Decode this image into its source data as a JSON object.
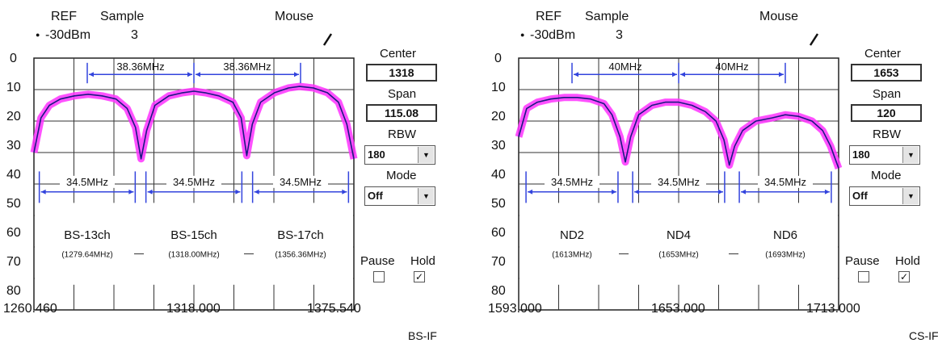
{
  "panels": [
    {
      "header": {
        "ref_label": "REF",
        "ref_value": "-30dBm",
        "sample_label": "Sample",
        "sample_value": "3",
        "mouse_label": "Mouse"
      },
      "footer_label": "BS-IF",
      "controls": {
        "center_label": "Center",
        "center_value": "1318",
        "span_label": "Span",
        "span_value": "115.08",
        "rbw_label": "RBW",
        "rbw_value": "180",
        "mode_label": "Mode",
        "mode_value": "Off",
        "pause_label": "Pause",
        "hold_label": "Hold",
        "pause_checked": false,
        "hold_checked": true
      },
      "channels": [
        {
          "name": "BS-13ch",
          "freq": "(1279.64MHz)"
        },
        {
          "name": "BS-15ch",
          "freq": "(1318.00MHz)"
        },
        {
          "name": "BS-17ch",
          "freq": "(1356.36MHz)"
        }
      ],
      "spacing_labels": [
        "38.36MHz",
        "38.36MHz"
      ],
      "bandwidth_labels": [
        "34.5MHz",
        "34.5MHz",
        "34.5MHz"
      ]
    },
    {
      "header": {
        "ref_label": "REF",
        "ref_value": "-30dBm",
        "sample_label": "Sample",
        "sample_value": "3",
        "mouse_label": "Mouse"
      },
      "footer_label": "CS-IF",
      "controls": {
        "center_label": "Center",
        "center_value": "1653",
        "span_label": "Span",
        "span_value": "120",
        "rbw_label": "RBW",
        "rbw_value": "180",
        "mode_label": "Mode",
        "mode_value": "Off",
        "pause_label": "Pause",
        "hold_label": "Hold",
        "pause_checked": false,
        "hold_checked": true
      },
      "channels": [
        {
          "name": "ND2",
          "freq": "(1613MHz)"
        },
        {
          "name": "ND4",
          "freq": "(1653MHz)"
        },
        {
          "name": "ND6",
          "freq": "(1693MHz)"
        }
      ],
      "spacing_labels": [
        "40MHz",
        "40MHz"
      ],
      "bandwidth_labels": [
        "34.5MHz",
        "34.5MHz",
        "34.5MHz"
      ]
    }
  ],
  "chart_data": [
    {
      "type": "line",
      "x_ticks": [
        "1260.460",
        "1318.000",
        "1375.540"
      ],
      "y_ticks": [
        "0",
        "10",
        "20",
        "30",
        "40",
        "50",
        "60",
        "70",
        "80"
      ],
      "xlim": [
        1260.46,
        1375.54
      ],
      "ylim": [
        0,
        80
      ],
      "y_inverted": true,
      "grid": true,
      "series_color": "#ff33ff",
      "trace_color": "#1a1a80",
      "annotation_color": "#3344dd",
      "channel_centers": [
        1279.64,
        1318.0,
        1356.36
      ],
      "channel_bandwidth": 34.5,
      "trace_points": [
        [
          1260.46,
          30
        ],
        [
          1263,
          19
        ],
        [
          1266,
          15
        ],
        [
          1270,
          13
        ],
        [
          1275,
          12
        ],
        [
          1280,
          11.5
        ],
        [
          1285,
          12
        ],
        [
          1290,
          13
        ],
        [
          1294,
          16
        ],
        [
          1297,
          22
        ],
        [
          1299,
          32
        ],
        [
          1301,
          23
        ],
        [
          1304,
          15
        ],
        [
          1309,
          12
        ],
        [
          1314,
          11
        ],
        [
          1318,
          10.5
        ],
        [
          1322,
          11
        ],
        [
          1327,
          12
        ],
        [
          1332,
          14
        ],
        [
          1335,
          19
        ],
        [
          1337,
          31
        ],
        [
          1339,
          21
        ],
        [
          1342,
          14
        ],
        [
          1347,
          11
        ],
        [
          1352,
          9.5
        ],
        [
          1356,
          9
        ],
        [
          1361,
          9.5
        ],
        [
          1366,
          11
        ],
        [
          1370,
          14
        ],
        [
          1373,
          21
        ],
        [
          1375.54,
          32
        ]
      ]
    },
    {
      "type": "line",
      "x_ticks": [
        "1593.000",
        "1653.000",
        "1713.000"
      ],
      "y_ticks": [
        "0",
        "10",
        "20",
        "30",
        "40",
        "50",
        "60",
        "70",
        "80"
      ],
      "xlim": [
        1593,
        1713
      ],
      "ylim": [
        0,
        80
      ],
      "y_inverted": true,
      "grid": true,
      "series_color": "#ff33ff",
      "trace_color": "#1a1a80",
      "annotation_color": "#3344dd",
      "channel_centers": [
        1613,
        1653,
        1693
      ],
      "channel_bandwidth": 34.5,
      "trace_points": [
        [
          1593,
          25
        ],
        [
          1596,
          16
        ],
        [
          1600,
          14
        ],
        [
          1605,
          13
        ],
        [
          1610,
          12.5
        ],
        [
          1615,
          12.5
        ],
        [
          1620,
          13
        ],
        [
          1625,
          14.5
        ],
        [
          1628,
          18
        ],
        [
          1631,
          25
        ],
        [
          1633,
          33
        ],
        [
          1635,
          25
        ],
        [
          1638,
          18
        ],
        [
          1643,
          15
        ],
        [
          1648,
          14
        ],
        [
          1653,
          14
        ],
        [
          1658,
          15
        ],
        [
          1663,
          17
        ],
        [
          1667,
          20
        ],
        [
          1670,
          26
        ],
        [
          1672,
          34
        ],
        [
          1674,
          28
        ],
        [
          1677,
          23
        ],
        [
          1682,
          20
        ],
        [
          1688,
          19
        ],
        [
          1693,
          18
        ],
        [
          1698,
          18.5
        ],
        [
          1703,
          20
        ],
        [
          1707,
          23
        ],
        [
          1710,
          28
        ],
        [
          1713,
          35
        ]
      ]
    }
  ]
}
